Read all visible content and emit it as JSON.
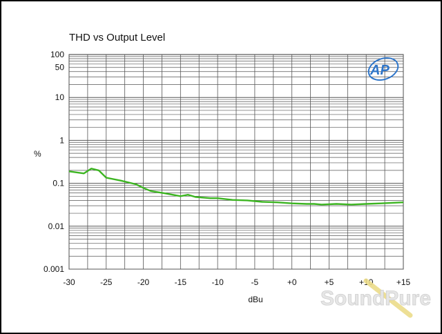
{
  "chart_data": {
    "type": "line",
    "title": "THD vs Output Level",
    "xlabel": "dBu",
    "ylabel": "%",
    "xlim": [
      -30,
      15
    ],
    "ylim": [
      0.001,
      100
    ],
    "y_scale": "log",
    "grid": true,
    "x_ticks": [
      -30,
      -25,
      -20,
      -15,
      -10,
      -5,
      0,
      5,
      10,
      15
    ],
    "x_tick_labels": [
      "-30",
      "-25",
      "-20",
      "-15",
      "-10",
      "-5",
      "+0",
      "+5",
      "+10",
      "+15"
    ],
    "y_ticks": [
      0.001,
      0.01,
      0.1,
      1,
      10,
      50,
      100
    ],
    "y_tick_labels": [
      "0.001",
      "0.01",
      "0.1",
      "1",
      "10",
      "50",
      "100"
    ],
    "series": [
      {
        "color": "#3cb521",
        "x": [
          -30,
          -28,
          -27,
          -26,
          -25,
          -23,
          -21,
          -20,
          -19,
          -17,
          -15,
          -14,
          -13,
          -11,
          -10,
          -8,
          -6,
          -4,
          -2,
          0,
          2,
          3,
          4,
          6,
          8,
          10,
          12,
          15
        ],
        "y": [
          0.19,
          0.17,
          0.22,
          0.2,
          0.135,
          0.115,
          0.095,
          0.078,
          0.066,
          0.058,
          0.05,
          0.054,
          0.048,
          0.045,
          0.045,
          0.041,
          0.04,
          0.037,
          0.036,
          0.034,
          0.033,
          0.033,
          0.032,
          0.033,
          0.032,
          0.033,
          0.034,
          0.036
        ]
      }
    ]
  },
  "logo": {
    "text": "AP"
  },
  "watermark": {
    "text": "SoundPure"
  },
  "colors": {
    "background": "#000000",
    "panel": "#ffffff",
    "grid": "#555555",
    "line": "#3cb521",
    "logo": "#2e75c9"
  }
}
